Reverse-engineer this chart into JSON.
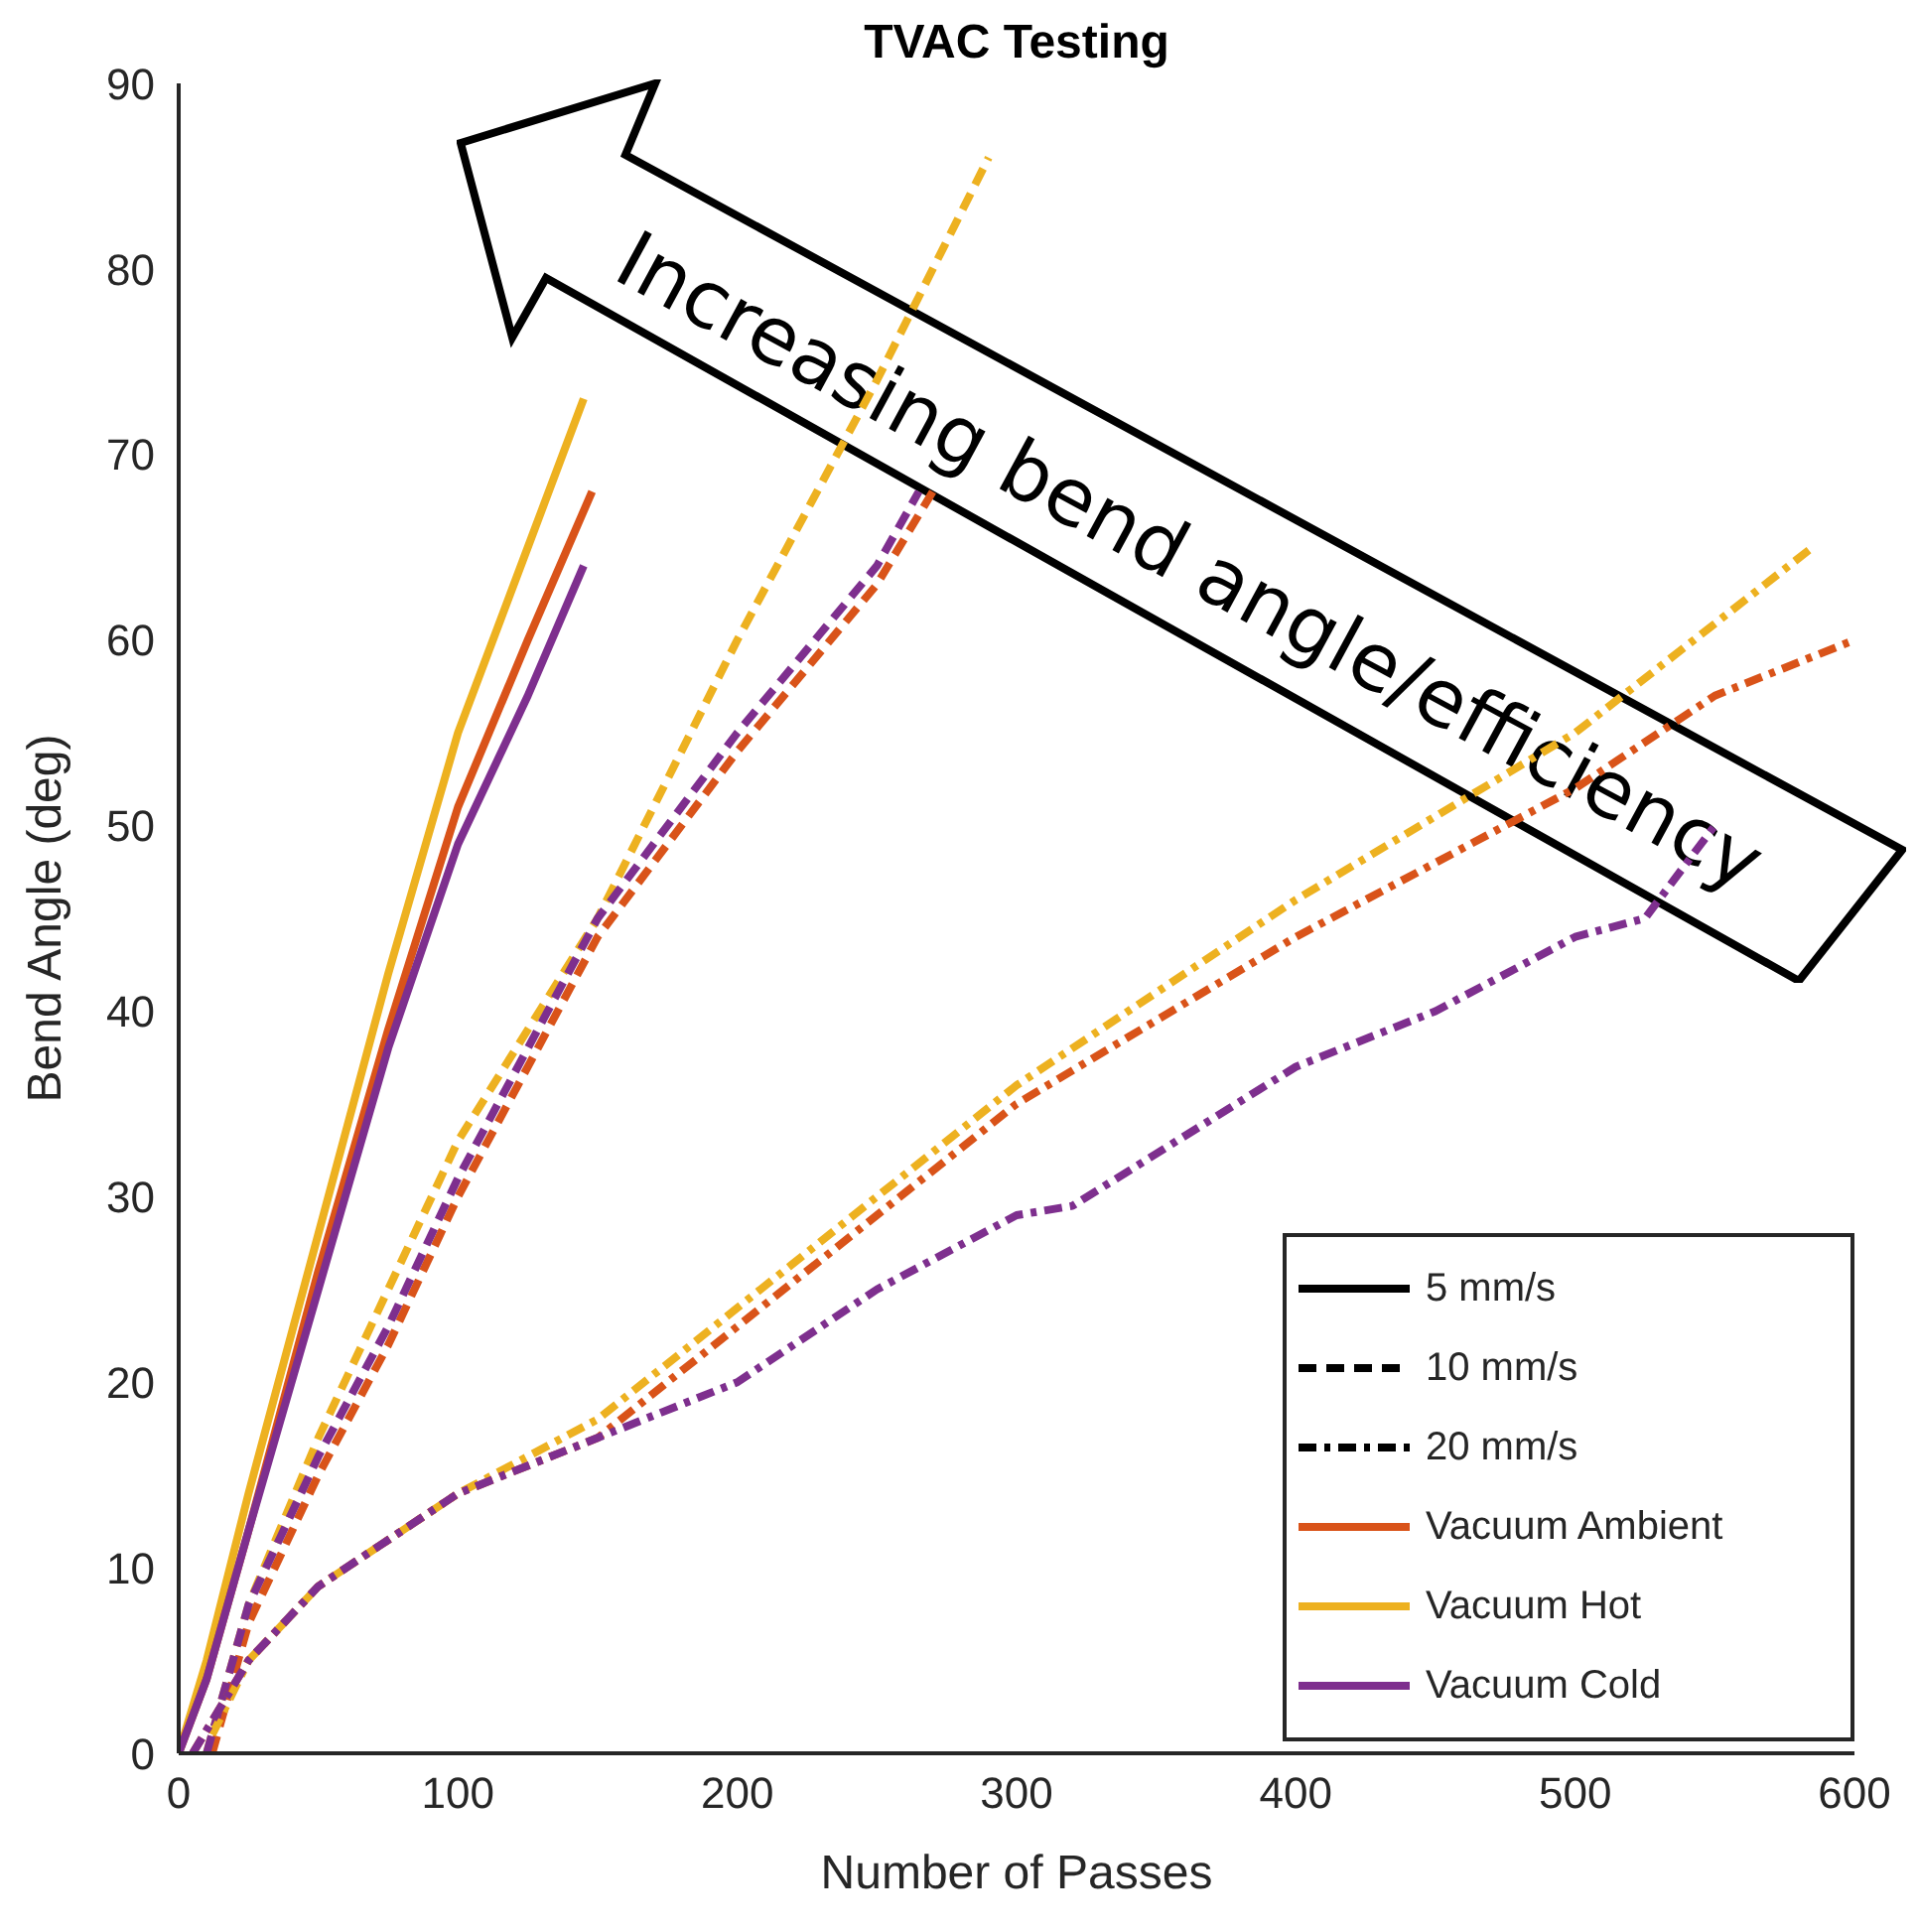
{
  "chart_data": {
    "type": "line",
    "title": "TVAC Testing",
    "xlabel": "Number of Passes",
    "ylabel": "Bend Angle (deg)",
    "xlim": [
      0,
      600
    ],
    "xticks": [
      0,
      100,
      200,
      300,
      400,
      500,
      600
    ],
    "ylim": [
      0,
      90
    ],
    "yticks": [
      0,
      10,
      20,
      30,
      40,
      50,
      60,
      70,
      80,
      90
    ],
    "grid": false,
    "legend": "bottom right",
    "annotations": [
      "Increasing bend angle/efficiency"
    ],
    "series": [
      {
        "color": "#edb120",
        "line_style": "solid",
        "x": [
          0,
          10,
          25,
          50,
          75,
          100,
          125,
          145
        ],
        "values": [
          0,
          5,
          14,
          28,
          42,
          55,
          65,
          73
        ]
      },
      {
        "color": "#d95319",
        "line_style": "solid",
        "x": [
          0,
          10,
          25,
          50,
          75,
          100,
          125,
          148
        ],
        "values": [
          0,
          4,
          12,
          26,
          39,
          51,
          60,
          68
        ]
      },
      {
        "color": "#7e2f8e",
        "line_style": "solid",
        "x": [
          0,
          10,
          25,
          50,
          75,
          100,
          125,
          145
        ],
        "values": [
          0,
          4,
          12,
          25,
          38,
          49,
          57,
          64
        ]
      },
      {
        "color": "#edb120",
        "line_style": "dashed",
        "x": [
          10,
          25,
          50,
          75,
          100,
          150,
          200,
          250,
          290
        ],
        "values": [
          0,
          8,
          17,
          25,
          33,
          45,
          60,
          74,
          86
        ]
      },
      {
        "color": "#d95319",
        "line_style": "dashed",
        "x": [
          12,
          25,
          50,
          75,
          100,
          150,
          200,
          250,
          270
        ],
        "values": [
          0,
          7,
          15,
          22,
          30,
          44,
          54,
          63,
          68
        ]
      },
      {
        "color": "#7e2f8e",
        "line_style": "dashed",
        "x": [
          10,
          25,
          50,
          75,
          100,
          150,
          200,
          250,
          265
        ],
        "values": [
          0,
          8,
          16,
          23,
          31,
          45,
          55,
          64,
          68
        ]
      },
      {
        "color": "#edb120",
        "line_style": "dashdot",
        "x": [
          12,
          25,
          50,
          100,
          150,
          200,
          300,
          400,
          500,
          585
        ],
        "values": [
          1,
          5,
          9,
          14,
          18,
          24,
          36,
          46,
          55,
          65
        ]
      },
      {
        "color": "#d95319",
        "line_style": "dashdot",
        "x": [
          5,
          25,
          50,
          100,
          150,
          200,
          300,
          400,
          500,
          550,
          600
        ],
        "values": [
          0,
          5,
          9,
          14,
          17,
          23,
          35,
          44,
          52,
          57,
          60
        ]
      },
      {
        "color": "#7e2f8e",
        "line_style": "dashdot",
        "x": [
          5,
          25,
          50,
          100,
          150,
          200,
          250,
          300,
          320,
          400,
          450,
          500,
          525,
          550
        ],
        "values": [
          0,
          5,
          9,
          14,
          17,
          20,
          25,
          29,
          29.5,
          37,
          40,
          44,
          45,
          50
        ]
      },
      {
        "name": "5 mm/s",
        "color": "#000000",
        "line_style": "solid"
      },
      {
        "name": "10 mm/s",
        "color": "#000000",
        "line_style": "dashed"
      },
      {
        "name": "20 mm/s",
        "color": "#000000",
        "line_style": "dashdot"
      },
      {
        "name": "Vacuum Ambient",
        "color": "#d95319",
        "line_style": "solid"
      },
      {
        "name": "Vacuum Hot",
        "color": "#edb120",
        "line_style": "solid"
      },
      {
        "name": "Vacuum Cold",
        "color": "#7e2f8e",
        "line_style": "solid"
      }
    ]
  }
}
